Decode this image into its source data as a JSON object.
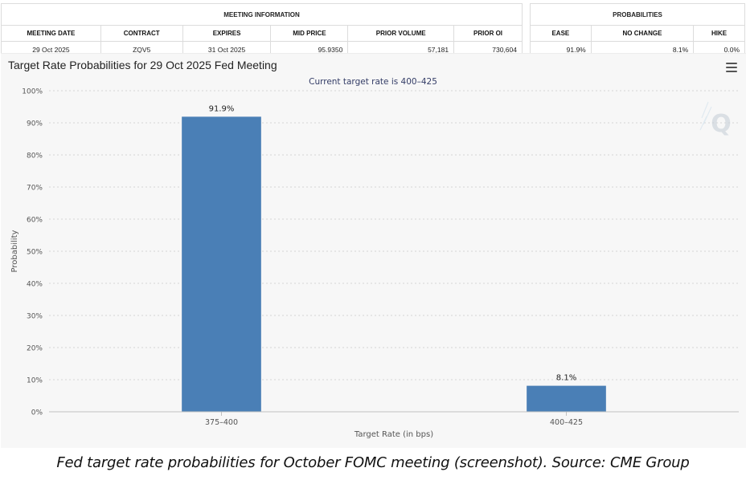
{
  "meeting_info": {
    "title": "MEETING INFORMATION",
    "headers": [
      "MEETING DATE",
      "CONTRACT",
      "EXPIRES",
      "MID PRICE",
      "PRIOR VOLUME",
      "PRIOR OI"
    ],
    "values": [
      "29 Oct 2025",
      "ZQV5",
      "31 Oct 2025",
      "95.9350",
      "57,181",
      "730,604"
    ]
  },
  "probabilities": {
    "title": "PROBABILITIES",
    "headers": [
      "EASE",
      "NO CHANGE",
      "HIKE"
    ],
    "values": [
      "91.9%",
      "8.1%",
      "0.0%"
    ]
  },
  "chart_data": {
    "type": "bar",
    "title": "Target Rate Probabilities for 29 Oct 2025 Fed Meeting",
    "subtitle": "Current target rate is 400–425",
    "xlabel": "Target Rate (in bps)",
    "ylabel": "Probability",
    "categories": [
      "375–400",
      "400–425"
    ],
    "values": [
      91.9,
      8.1
    ],
    "value_labels": [
      "91.9%",
      "8.1%"
    ],
    "ylim": [
      0,
      100
    ],
    "yticks": [
      0,
      10,
      20,
      30,
      40,
      50,
      60,
      70,
      80,
      90,
      100
    ],
    "ytick_labels": [
      "0%",
      "10%",
      "20%",
      "30%",
      "40%",
      "50%",
      "60%",
      "70%",
      "80%",
      "90%",
      "100%"
    ],
    "grid": true,
    "bar_color": "#4a7fb6",
    "title_color": "#222222",
    "subtitle_color": "#333c66"
  },
  "caption": "Fed target rate probabilities for October FOMC meeting (screenshot). Source: CME Group"
}
